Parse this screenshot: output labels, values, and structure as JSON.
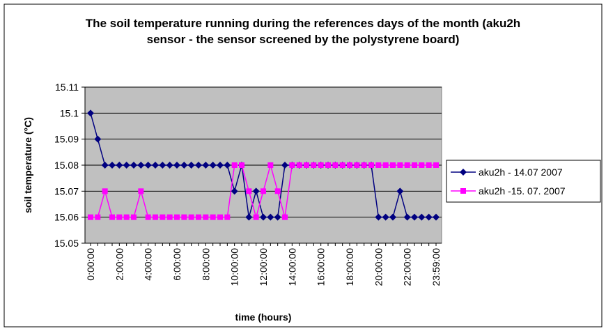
{
  "chart_data": {
    "type": "line",
    "title": "The soil temperature running during the references days  of the month (aku2h sensor - the sensor screened by the polystyrene board)",
    "x_label": "time (hours)",
    "y_label": "soil temperature (°C)",
    "categories": [
      "0:00:00",
      null,
      null,
      null,
      "2:00:00",
      null,
      null,
      null,
      "4:00:00",
      null,
      null,
      null,
      "6:00:00",
      null,
      null,
      null,
      "8:00:00",
      null,
      null,
      null,
      "10:00:00",
      null,
      null,
      null,
      "12:00:00",
      null,
      null,
      null,
      "14:00:00",
      null,
      null,
      null,
      "16:00:00",
      null,
      null,
      null,
      "18:00:00",
      null,
      null,
      null,
      "20:00:00",
      null,
      null,
      null,
      "22:00:00",
      null,
      null,
      null,
      "23:59:00"
    ],
    "series": [
      {
        "name": "aku2h - 14.07 2007",
        "color": "#000080",
        "marker": "diamond",
        "values": [
          15.1,
          15.09,
          15.08,
          15.08,
          15.08,
          15.08,
          15.08,
          15.08,
          15.08,
          15.08,
          15.08,
          15.08,
          15.08,
          15.08,
          15.08,
          15.08,
          15.08,
          15.08,
          15.08,
          15.08,
          15.07,
          15.08,
          15.06,
          15.07,
          15.06,
          15.06,
          15.06,
          15.08,
          15.08,
          15.08,
          15.08,
          15.08,
          15.08,
          15.08,
          15.08,
          15.08,
          15.08,
          15.08,
          15.08,
          15.08,
          15.06,
          15.06,
          15.06,
          15.07,
          15.06,
          15.06,
          15.06,
          15.06,
          15.06
        ]
      },
      {
        "name": "aku2h -15. 07. 2007",
        "color": "#ff00ff",
        "marker": "square",
        "values": [
          15.06,
          15.06,
          15.07,
          15.06,
          15.06,
          15.06,
          15.06,
          15.07,
          15.06,
          15.06,
          15.06,
          15.06,
          15.06,
          15.06,
          15.06,
          15.06,
          15.06,
          15.06,
          15.06,
          15.06,
          15.08,
          15.08,
          15.07,
          15.06,
          15.07,
          15.08,
          15.07,
          15.06,
          15.08,
          15.08,
          15.08,
          15.08,
          15.08,
          15.08,
          15.08,
          15.08,
          15.08,
          15.08,
          15.08,
          15.08,
          15.08,
          15.08,
          15.08,
          15.08,
          15.08,
          15.08,
          15.08,
          15.08,
          15.08
        ]
      }
    ],
    "ylim": [
      15.05,
      15.11
    ],
    "yticks": [
      15.05,
      15.06,
      15.07,
      15.08,
      15.09,
      15.1,
      15.11
    ],
    "grid": true,
    "plot_background": "#c0c0c0",
    "legend": "right"
  }
}
